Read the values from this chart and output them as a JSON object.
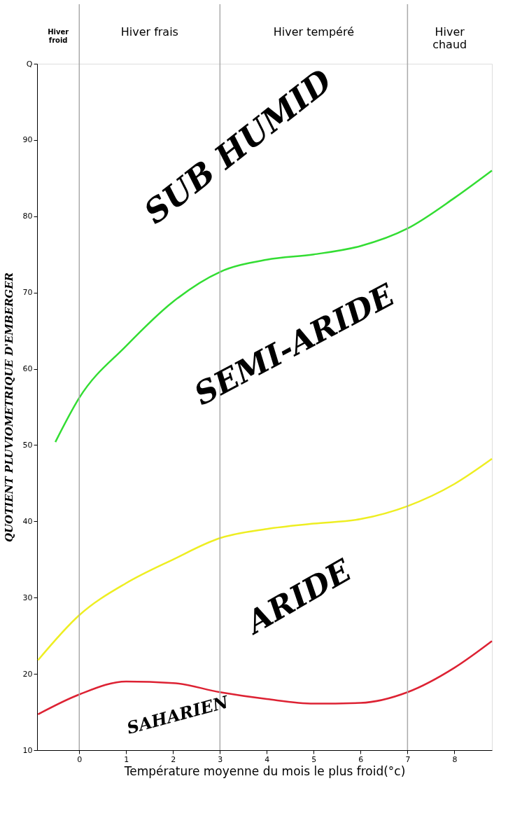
{
  "chart_data": {
    "type": "line",
    "xlabel": "Température moyenne du mois le plus froid(°c)",
    "ylabel": "QUOTIENT PLUVIOMETRIQUE D'EMBERGER",
    "xlim": [
      -0.9,
      8.8
    ],
    "xticks": [
      0,
      1,
      2,
      3,
      4,
      5,
      6,
      7,
      8
    ],
    "ylim": [
      10,
      100
    ],
    "yticks": [
      10,
      20,
      30,
      40,
      50,
      60,
      70,
      80,
      90,
      {
        "value": 100,
        "label": "Q"
      }
    ],
    "grid": false,
    "legend": false,
    "marker": "none",
    "line_style": "solid",
    "series": [
      {
        "color": "#33dd33",
        "x": [
          -0.51,
          0,
          1,
          2,
          3,
          4,
          5,
          6,
          7,
          8,
          8.8
        ],
        "values": [
          50.4,
          56.2,
          63,
          68.8,
          72.7,
          74.3,
          75,
          76.1,
          78.4,
          82.4,
          86
        ]
      },
      {
        "color": "#eeee22",
        "x": [
          -0.88,
          0,
          1,
          2,
          3,
          4,
          5,
          6,
          7,
          8,
          8.8
        ],
        "values": [
          21.8,
          27.7,
          31.9,
          35,
          37.8,
          39,
          39.7,
          40.3,
          42,
          44.9,
          48.2
        ]
      },
      {
        "color": "#dd2233",
        "x": [
          -0.88,
          0,
          1,
          2,
          3,
          4,
          5,
          6,
          7,
          8,
          8.8
        ],
        "values": [
          14.7,
          17.3,
          19,
          18.8,
          17.6,
          16.7,
          16.1,
          16.2,
          17.6,
          20.8,
          24.3
        ]
      }
    ],
    "ref_lines": [
      {
        "axis": "x",
        "value": 0,
        "color": "#aaaaaa"
      },
      {
        "axis": "x",
        "value": 3,
        "color": "#aaaaaa"
      },
      {
        "axis": "x",
        "value": 7,
        "color": "#aaaaaa"
      }
    ],
    "annotations": [
      "SUB HUMID",
      "SEMI-ARIDE",
      "ARIDE",
      "SAHARIEN",
      "Hiver froid",
      "Hiver frais",
      "Hiver tempéré",
      "Hiver chaud"
    ]
  }
}
